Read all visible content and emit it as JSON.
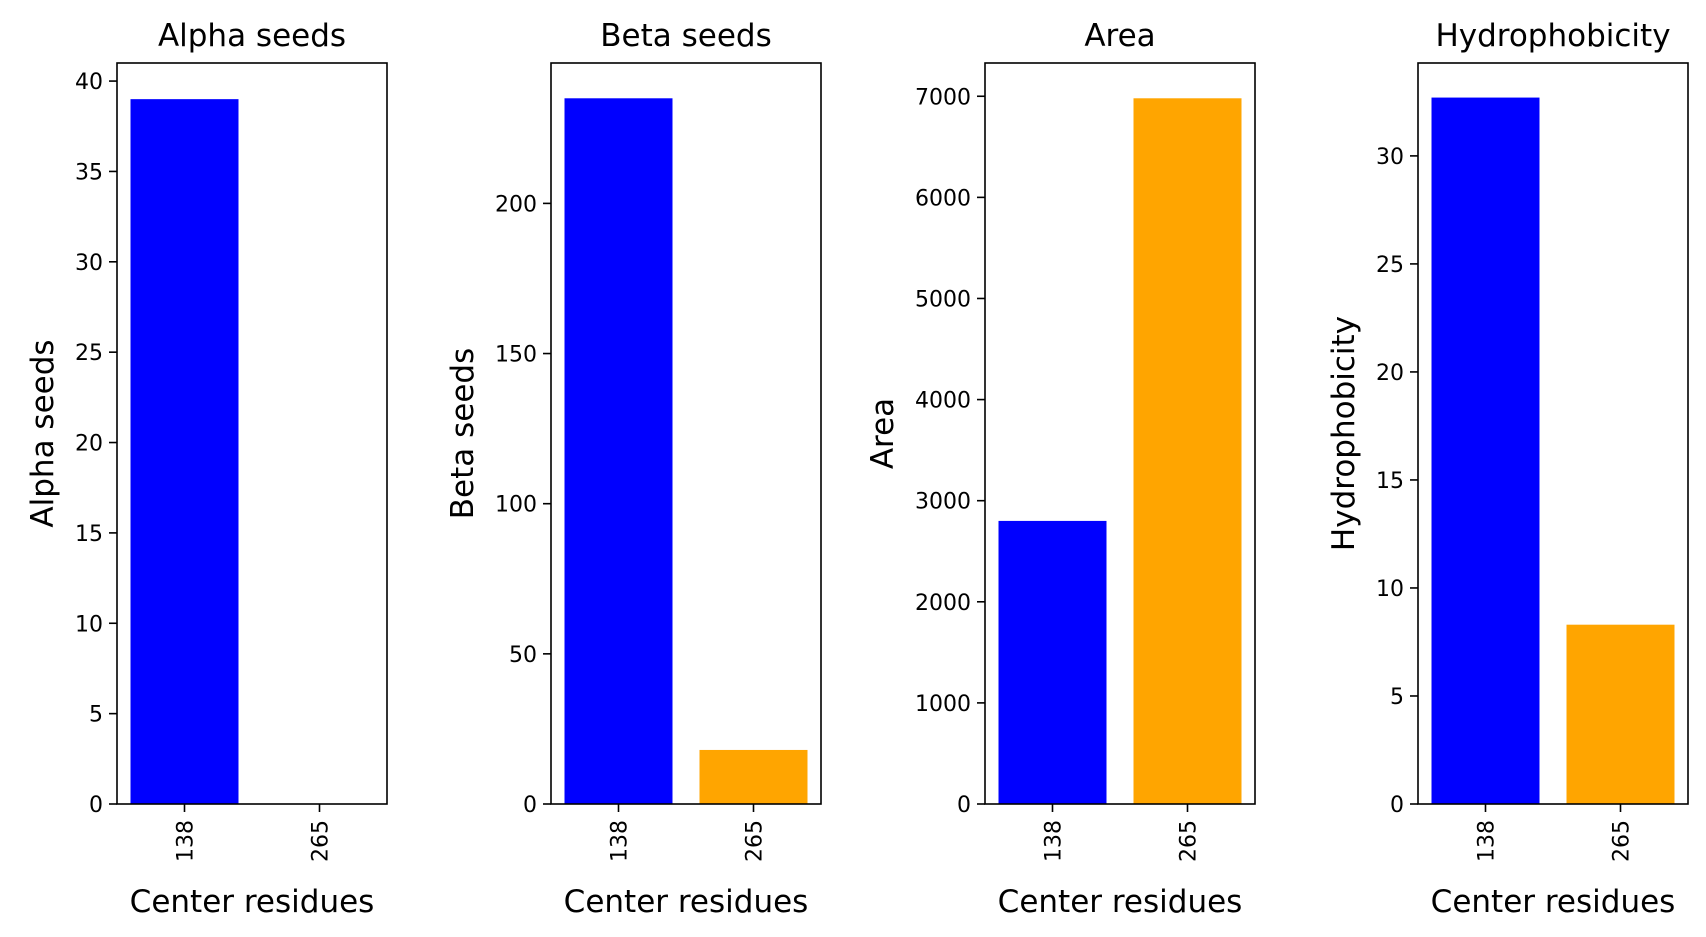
{
  "chart_data": [
    {
      "type": "bar",
      "title": "Alpha seeds",
      "xlabel": "Center residues",
      "ylabel": "Alpha seeds",
      "categories": [
        "138",
        "265"
      ],
      "values": [
        39,
        0
      ],
      "bar_colors": [
        "#0000ff",
        "#ffa500"
      ],
      "ylim": [
        0,
        41
      ],
      "yticks": [
        0,
        5,
        10,
        15,
        20,
        25,
        30,
        35,
        40
      ],
      "grid": false
    },
    {
      "type": "bar",
      "title": "Beta seeds",
      "xlabel": "Center residues",
      "ylabel": "Beta seeds",
      "categories": [
        "138",
        "265"
      ],
      "values": [
        235,
        18
      ],
      "bar_colors": [
        "#0000ff",
        "#ffa500"
      ],
      "ylim": [
        0,
        246.75
      ],
      "yticks": [
        0,
        50,
        100,
        150,
        200
      ],
      "grid": false
    },
    {
      "type": "bar",
      "title": "Area",
      "xlabel": "Center residues",
      "ylabel": "Area",
      "categories": [
        "138",
        "265"
      ],
      "values": [
        2800,
        6980
      ],
      "bar_colors": [
        "#0000ff",
        "#ffa500"
      ],
      "ylim": [
        0,
        7329
      ],
      "yticks": [
        0,
        1000,
        2000,
        3000,
        4000,
        5000,
        6000,
        7000
      ],
      "grid": false
    },
    {
      "type": "bar",
      "title": "Hydrophobicity",
      "xlabel": "Center residues",
      "ylabel": "Hydrophobicity",
      "categories": [
        "138",
        "265"
      ],
      "values": [
        32.7,
        8.3
      ],
      "bar_colors": [
        "#0000ff",
        "#ffa500"
      ],
      "ylim": [
        0,
        34.3
      ],
      "yticks": [
        0,
        5,
        10,
        15,
        20,
        25,
        30
      ],
      "grid": false
    }
  ]
}
